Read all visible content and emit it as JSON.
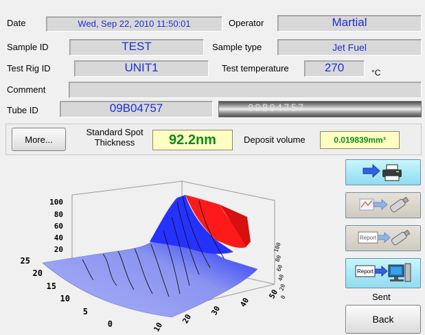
{
  "header": {
    "date_label": "Date",
    "date_value": "Wed, Sep 22, 2010  11:50:01",
    "operator_label": "Operator",
    "operator_value": "Martial",
    "sample_id_label": "Sample ID",
    "sample_id_value": "TEST",
    "sample_type_label": "Sample type",
    "sample_type_value": "Jet Fuel",
    "test_rig_label": "Test Rig ID",
    "test_rig_value": "UNIT1",
    "test_temp_label": "Test temperature",
    "test_temp_value": "270",
    "test_temp_unit": "°C",
    "comment_label": "Comment",
    "comment_value": "",
    "tube_id_label": "Tube ID",
    "tube_id_value": "09B04757",
    "tube_image_text": "09B04757"
  },
  "results": {
    "more_label": "More...",
    "spot_label_line1": "Standard Spot",
    "spot_label_line2": "Thickness",
    "spot_value": "92.2nm",
    "deposit_label": "Deposit volume",
    "deposit_value": "0.019839mm³"
  },
  "side": {
    "print_icon": "printer-icon",
    "export_icon": "usb-drive-icon",
    "report_usb_icon": "report-usb-icon",
    "report_label": "Report",
    "report_pc_icon": "report-computer-icon",
    "sent_label": "Sent",
    "back_label": "Back"
  },
  "chart_data": {
    "type": "surface",
    "z_ticks": [
      "100",
      "80",
      "60",
      "40",
      "20"
    ],
    "y_ticks": [
      "25",
      "20",
      "15",
      "10",
      "5",
      "0"
    ],
    "x_ticks": [
      "10",
      "20",
      "30",
      "40",
      "50"
    ],
    "depth_ticks": [
      "100",
      "80",
      "60",
      "40",
      "20",
      "0"
    ],
    "colors": {
      "base": "#8c96f2",
      "mid": "#2a3aff",
      "peak": "#ff1a1a"
    }
  }
}
